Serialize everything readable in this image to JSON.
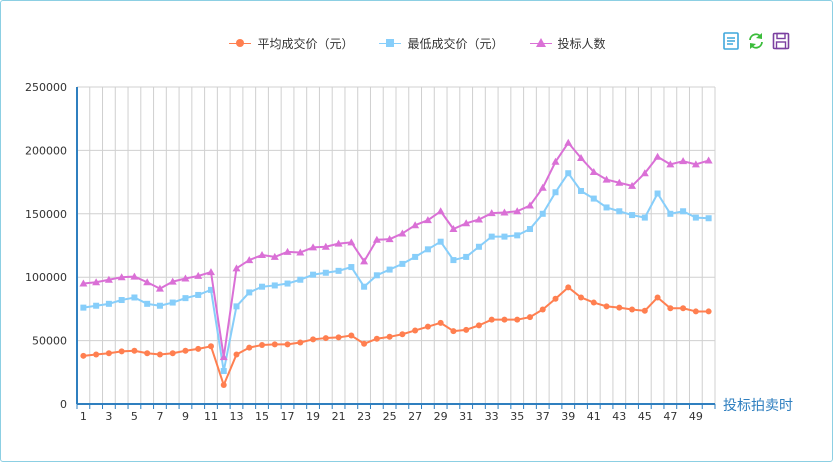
{
  "legend": {
    "items": [
      {
        "label": "平均成交价（元）",
        "color": "#ff7f50",
        "symbol": "dot"
      },
      {
        "label": "最低成交价（元）",
        "color": "#87cefa",
        "symbol": "square"
      },
      {
        "label": "投标人数",
        "color": "#da70d6",
        "symbol": "triangle"
      }
    ]
  },
  "toolbox": {
    "data_view": "data-view-icon",
    "restore": "restore-icon",
    "save_image": "save-image-icon"
  },
  "chart_data": {
    "type": "line",
    "x": [
      1,
      2,
      3,
      4,
      5,
      6,
      7,
      8,
      9,
      10,
      11,
      12,
      13,
      14,
      15,
      16,
      17,
      18,
      19,
      20,
      21,
      22,
      23,
      24,
      25,
      26,
      27,
      28,
      29,
      30,
      31,
      32,
      33,
      34,
      35,
      36,
      37,
      38,
      39,
      40,
      41,
      42,
      43,
      44,
      45,
      46,
      47,
      48,
      49,
      50
    ],
    "x_tick_labels": [
      "1",
      "3",
      "5",
      "7",
      "9",
      "11",
      "13",
      "15",
      "17",
      "19",
      "21",
      "23",
      "25",
      "27",
      "29",
      "31",
      "33",
      "35",
      "37",
      "39",
      "41",
      "43",
      "45",
      "47",
      "49"
    ],
    "xlabel": "投标拍卖时",
    "ylim": [
      0,
      250000
    ],
    "y_ticks": [
      0,
      50000,
      100000,
      150000,
      200000,
      250000
    ],
    "y_tick_labels": [
      "0",
      "50000",
      "100000",
      "150000",
      "200000",
      "250000"
    ],
    "grid": true,
    "legend_position": "top-center",
    "series": [
      {
        "name": "平均成交价（元）",
        "color": "#ff7f50",
        "symbol": "dot",
        "values": [
          38000,
          39000,
          40000,
          41500,
          42000,
          40000,
          39000,
          40000,
          42000,
          43500,
          45500,
          15000,
          39000,
          44500,
          46500,
          47000,
          47000,
          48500,
          51000,
          52000,
          52500,
          54000,
          47500,
          51500,
          53000,
          55000,
          58000,
          61000,
          64000,
          57500,
          58500,
          62000,
          66500,
          66500,
          66500,
          68500,
          74500,
          83000,
          92000,
          84000,
          80000,
          77000,
          76000,
          74500,
          73500,
          84000,
          75500,
          75500,
          73000,
          73000
        ]
      },
      {
        "name": "最低成交价（元）",
        "color": "#87cefa",
        "symbol": "square",
        "values": [
          76000,
          77500,
          79000,
          82000,
          84000,
          79000,
          77500,
          80000,
          83500,
          86000,
          90000,
          26000,
          77000,
          88000,
          92500,
          93500,
          95000,
          98000,
          102000,
          103500,
          105000,
          108000,
          92500,
          101500,
          106000,
          110500,
          116000,
          122000,
          128000,
          113500,
          116000,
          124000,
          132000,
          132000,
          133000,
          138000,
          150000,
          167000,
          182000,
          168000,
          162000,
          155000,
          152000,
          149000,
          147000,
          166000,
          150000,
          152000,
          147000,
          146500
        ]
      },
      {
        "name": "投标人数",
        "color": "#da70d6",
        "symbol": "triangle",
        "values": [
          95000,
          96000,
          98000,
          100000,
          100500,
          96000,
          91000,
          96500,
          99000,
          101000,
          104000,
          37000,
          107000,
          113500,
          117500,
          116000,
          120000,
          119500,
          123500,
          124000,
          126500,
          127500,
          112500,
          129500,
          130000,
          134500,
          141000,
          145000,
          152000,
          138000,
          142500,
          145500,
          150500,
          151000,
          152000,
          156500,
          170500,
          191000,
          206000,
          194000,
          183000,
          177000,
          174500,
          172000,
          182000,
          195000,
          189000,
          191500,
          189000,
          192000
        ]
      }
    ]
  }
}
